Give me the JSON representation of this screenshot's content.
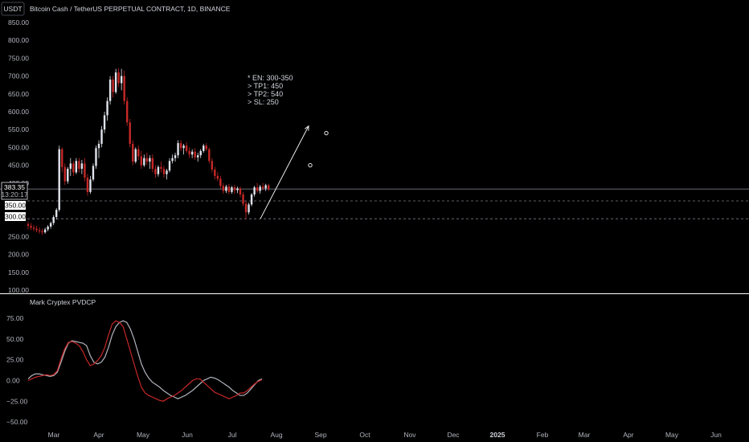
{
  "header": {
    "currency_button": "USDT",
    "title": "Bitcoin Cash / TetherUS PERPETUAL CONTRACT, 1D, BINANCE"
  },
  "colors": {
    "background": "#000000",
    "up_candle": "#e0e3eb",
    "down_candle": "#c62828",
    "signal_line": "#c62828",
    "oscillator_line": "#b2b5be",
    "price_line": "#787b86",
    "pane_divider": "#ffffff"
  },
  "annotation": {
    "lines": [
      "* EN: 300-350",
      "> TP1: 450",
      "> TP2: 540",
      "> SL: 250"
    ]
  },
  "price_tags": {
    "last_price": "383.35",
    "countdown": "13:20:17",
    "level_1": "350.00",
    "level_2": "300.00"
  },
  "chart_data": [
    {
      "type": "candlestick",
      "title": "Bitcoin Cash / TetherUS PERPETUAL CONTRACT, 1D, BINANCE",
      "y_ticks": [
        "850.00",
        "800.00",
        "750.00",
        "700.00",
        "650.00",
        "600.00",
        "550.00",
        "500.00",
        "450.00",
        "400.00",
        "250.00",
        "200.00",
        "150.00",
        "100.00"
      ],
      "ylim": [
        100,
        850
      ],
      "x_ticks": [
        "Mar",
        "Apr",
        "May",
        "Jun",
        "Jul",
        "Aug",
        "Sep",
        "Oct",
        "Nov",
        "Dec",
        "2025",
        "Feb",
        "Mar",
        "Apr",
        "May",
        "Jun"
      ],
      "grid": false,
      "last_price": 383.35,
      "horizontal_levels": [
        350,
        300
      ],
      "targets": [
        450,
        540
      ],
      "projection": {
        "from": 300,
        "to": 560
      },
      "series": [
        {
          "values": [
            {
              "o": 285,
              "h": 292,
              "l": 270,
              "c": 280
            },
            {
              "o": 280,
              "h": 288,
              "l": 268,
              "c": 275
            },
            {
              "o": 275,
              "h": 282,
              "l": 265,
              "c": 272
            },
            {
              "o": 272,
              "h": 280,
              "l": 262,
              "c": 268
            },
            {
              "o": 268,
              "h": 276,
              "l": 258,
              "c": 265
            },
            {
              "o": 265,
              "h": 272,
              "l": 255,
              "c": 262
            },
            {
              "o": 262,
              "h": 275,
              "l": 258,
              "c": 270
            },
            {
              "o": 270,
              "h": 282,
              "l": 265,
              "c": 278
            },
            {
              "o": 278,
              "h": 292,
              "l": 272,
              "c": 288
            },
            {
              "o": 288,
              "h": 310,
              "l": 282,
              "c": 305
            },
            {
              "o": 305,
              "h": 330,
              "l": 298,
              "c": 325
            },
            {
              "o": 325,
              "h": 505,
              "l": 320,
              "c": 495
            },
            {
              "o": 495,
              "h": 500,
              "l": 430,
              "c": 445
            },
            {
              "o": 445,
              "h": 455,
              "l": 395,
              "c": 405
            },
            {
              "o": 405,
              "h": 445,
              "l": 398,
              "c": 440
            },
            {
              "o": 440,
              "h": 470,
              "l": 420,
              "c": 455
            },
            {
              "o": 455,
              "h": 462,
              "l": 420,
              "c": 430
            },
            {
              "o": 430,
              "h": 470,
              "l": 425,
              "c": 462
            },
            {
              "o": 462,
              "h": 470,
              "l": 430,
              "c": 440
            },
            {
              "o": 440,
              "h": 465,
              "l": 425,
              "c": 455
            },
            {
              "o": 455,
              "h": 470,
              "l": 405,
              "c": 415
            },
            {
              "o": 415,
              "h": 425,
              "l": 365,
              "c": 375
            },
            {
              "o": 375,
              "h": 420,
              "l": 370,
              "c": 410
            },
            {
              "o": 410,
              "h": 455,
              "l": 405,
              "c": 448
            },
            {
              "o": 448,
              "h": 505,
              "l": 440,
              "c": 498
            },
            {
              "o": 498,
              "h": 520,
              "l": 470,
              "c": 510
            },
            {
              "o": 510,
              "h": 560,
              "l": 500,
              "c": 550
            },
            {
              "o": 550,
              "h": 600,
              "l": 540,
              "c": 590
            },
            {
              "o": 590,
              "h": 640,
              "l": 575,
              "c": 630
            },
            {
              "o": 630,
              "h": 700,
              "l": 620,
              "c": 690
            },
            {
              "o": 690,
              "h": 700,
              "l": 640,
              "c": 655
            },
            {
              "o": 655,
              "h": 720,
              "l": 650,
              "c": 710
            },
            {
              "o": 710,
              "h": 722,
              "l": 670,
              "c": 680
            },
            {
              "o": 680,
              "h": 720,
              "l": 660,
              "c": 700
            },
            {
              "o": 700,
              "h": 715,
              "l": 620,
              "c": 630
            },
            {
              "o": 630,
              "h": 640,
              "l": 560,
              "c": 570
            },
            {
              "o": 570,
              "h": 580,
              "l": 500,
              "c": 510
            },
            {
              "o": 510,
              "h": 520,
              "l": 450,
              "c": 460
            },
            {
              "o": 460,
              "h": 500,
              "l": 455,
              "c": 495
            },
            {
              "o": 495,
              "h": 505,
              "l": 465,
              "c": 475
            },
            {
              "o": 475,
              "h": 490,
              "l": 440,
              "c": 450
            },
            {
              "o": 450,
              "h": 480,
              "l": 445,
              "c": 470
            },
            {
              "o": 470,
              "h": 485,
              "l": 450,
              "c": 460
            },
            {
              "o": 460,
              "h": 478,
              "l": 440,
              "c": 470
            },
            {
              "o": 470,
              "h": 480,
              "l": 430,
              "c": 440
            },
            {
              "o": 440,
              "h": 450,
              "l": 415,
              "c": 425
            },
            {
              "o": 425,
              "h": 450,
              "l": 418,
              "c": 445
            },
            {
              "o": 445,
              "h": 460,
              "l": 430,
              "c": 440
            },
            {
              "o": 440,
              "h": 448,
              "l": 415,
              "c": 425
            },
            {
              "o": 425,
              "h": 440,
              "l": 410,
              "c": 435
            },
            {
              "o": 435,
              "h": 470,
              "l": 430,
              "c": 462
            },
            {
              "o": 462,
              "h": 480,
              "l": 455,
              "c": 470
            },
            {
              "o": 470,
              "h": 485,
              "l": 460,
              "c": 478
            },
            {
              "o": 478,
              "h": 520,
              "l": 470,
              "c": 512
            },
            {
              "o": 512,
              "h": 520,
              "l": 490,
              "c": 498
            },
            {
              "o": 498,
              "h": 510,
              "l": 480,
              "c": 505
            },
            {
              "o": 505,
              "h": 515,
              "l": 485,
              "c": 490
            },
            {
              "o": 490,
              "h": 500,
              "l": 470,
              "c": 480
            },
            {
              "o": 480,
              "h": 495,
              "l": 470,
              "c": 488
            },
            {
              "o": 488,
              "h": 498,
              "l": 465,
              "c": 472
            },
            {
              "o": 472,
              "h": 485,
              "l": 460,
              "c": 478
            },
            {
              "o": 478,
              "h": 495,
              "l": 470,
              "c": 490
            },
            {
              "o": 490,
              "h": 510,
              "l": 485,
              "c": 505
            },
            {
              "o": 505,
              "h": 512,
              "l": 490,
              "c": 495
            },
            {
              "o": 495,
              "h": 500,
              "l": 455,
              "c": 462
            },
            {
              "o": 462,
              "h": 470,
              "l": 430,
              "c": 438
            },
            {
              "o": 438,
              "h": 445,
              "l": 410,
              "c": 420
            },
            {
              "o": 420,
              "h": 430,
              "l": 405,
              "c": 412
            },
            {
              "o": 412,
              "h": 420,
              "l": 385,
              "c": 392
            },
            {
              "o": 392,
              "h": 400,
              "l": 370,
              "c": 378
            },
            {
              "o": 378,
              "h": 395,
              "l": 372,
              "c": 390
            },
            {
              "o": 390,
              "h": 398,
              "l": 368,
              "c": 375
            },
            {
              "o": 375,
              "h": 392,
              "l": 370,
              "c": 388
            },
            {
              "o": 388,
              "h": 395,
              "l": 370,
              "c": 380
            },
            {
              "o": 380,
              "h": 390,
              "l": 372,
              "c": 385
            },
            {
              "o": 385,
              "h": 390,
              "l": 360,
              "c": 368
            },
            {
              "o": 368,
              "h": 375,
              "l": 335,
              "c": 342
            },
            {
              "o": 342,
              "h": 350,
              "l": 300,
              "c": 318
            },
            {
              "o": 318,
              "h": 345,
              "l": 312,
              "c": 340
            },
            {
              "o": 340,
              "h": 372,
              "l": 335,
              "c": 368
            },
            {
              "o": 368,
              "h": 392,
              "l": 362,
              "c": 388
            },
            {
              "o": 388,
              "h": 400,
              "l": 372,
              "c": 378
            },
            {
              "o": 378,
              "h": 395,
              "l": 370,
              "c": 390
            },
            {
              "o": 390,
              "h": 400,
              "l": 380,
              "c": 385
            },
            {
              "o": 385,
              "h": 398,
              "l": 378,
              "c": 394
            },
            {
              "o": 394,
              "h": 398,
              "l": 378,
              "c": 383.35
            }
          ]
        }
      ]
    },
    {
      "type": "line",
      "title": "Mark Cryptex PVDCP",
      "y_ticks": [
        "75.00",
        "50.00",
        "25.00",
        "0.00",
        "−25.00",
        "−50.00"
      ],
      "ylim": [
        -55,
        100
      ],
      "x_ticks": [
        "Mar",
        "Apr",
        "May",
        "Jun",
        "Jul",
        "Aug",
        "Sep",
        "Oct",
        "Nov",
        "Dec",
        "2025",
        "Feb",
        "Mar",
        "Apr",
        "May",
        "Jun"
      ],
      "series": [
        {
          "values": [
            2,
            6,
            8,
            8,
            7,
            6,
            5,
            6,
            10,
            22,
            35,
            45,
            48,
            47,
            46,
            45,
            42,
            30,
            22,
            20,
            22,
            28,
            40,
            55,
            65,
            70,
            72,
            70,
            62,
            50,
            35,
            20,
            10,
            3,
            -2,
            -5,
            -8,
            -12,
            -15,
            -18,
            -20,
            -22,
            -20,
            -18,
            -15,
            -12,
            -8,
            -4,
            0,
            2,
            4,
            3,
            1,
            -2,
            -5,
            -8,
            -12,
            -15,
            -18,
            -18,
            -15,
            -10,
            -5,
            0,
            2
          ]
        },
        {
          "values": [
            0,
            2,
            4,
            5,
            6,
            7,
            6,
            7,
            12,
            26,
            38,
            46,
            47,
            45,
            42,
            35,
            25,
            18,
            20,
            24,
            30,
            40,
            55,
            68,
            72,
            70,
            65,
            50,
            35,
            20,
            5,
            -8,
            -15,
            -18,
            -20,
            -22,
            -24,
            -25,
            -22,
            -20,
            -18,
            -15,
            -12,
            -8,
            -4,
            0,
            2,
            2,
            -2,
            -6,
            -10,
            -14,
            -16,
            -18,
            -20,
            -22,
            -20,
            -18,
            -15,
            -15,
            -12,
            -8,
            -4,
            -1,
            1
          ]
        }
      ]
    }
  ]
}
